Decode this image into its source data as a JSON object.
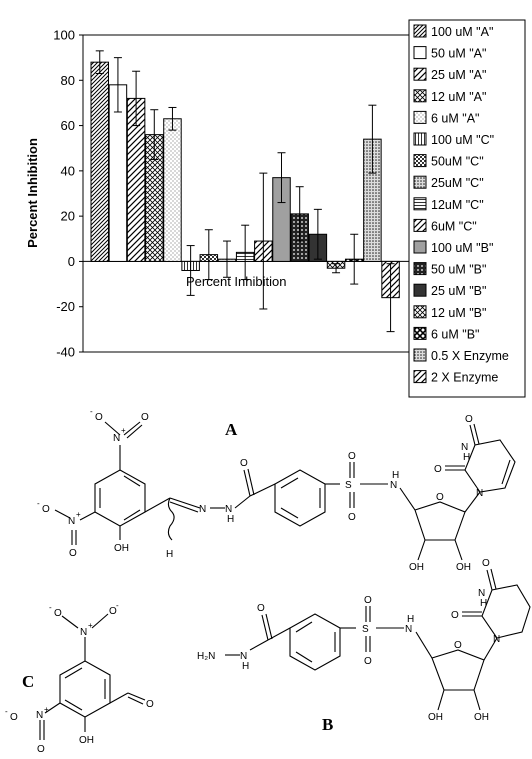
{
  "chart_data": {
    "type": "bar",
    "title": "",
    "xlabel": "Percent Inhibition",
    "ylabel": "Percent Inhibition",
    "ylim": [
      -40,
      100
    ],
    "yticks": [
      -40,
      -20,
      0,
      20,
      40,
      60,
      80,
      100
    ],
    "grid": false,
    "legend_position": "right",
    "series": [
      {
        "name": "100 uM \"A\"",
        "value": 88,
        "error": 5,
        "pattern": "diag-dense"
      },
      {
        "name": "50 uM \"A\"",
        "value": 78,
        "error": 12,
        "pattern": "white"
      },
      {
        "name": "25 uM \"A\"",
        "value": 72,
        "error": 12,
        "pattern": "diag-wide"
      },
      {
        "name": "12 uM \"A\"",
        "value": 56,
        "error": 11,
        "pattern": "cross"
      },
      {
        "name": "6 uM \"A\"",
        "value": 63,
        "error": 5,
        "pattern": "dots-light"
      },
      {
        "name": "100 uM \"C\"",
        "value": -4,
        "error": 11,
        "pattern": "vlines"
      },
      {
        "name": "50uM \"C\"",
        "value": 3,
        "error": 11,
        "pattern": "checker"
      },
      {
        "name": "25uM \"C\"",
        "value": 1,
        "error": 8,
        "pattern": "dots-dense"
      },
      {
        "name": "12uM \"C\"",
        "value": 4,
        "error": 12,
        "pattern": "hlines"
      },
      {
        "name": "6uM \"C\"",
        "value": 9,
        "error": 30,
        "pattern": "diag-wide"
      },
      {
        "name": "100 uM \"B\"",
        "value": 37,
        "error": 11,
        "pattern": "gray"
      },
      {
        "name": "50 uM \"B\"",
        "value": 21,
        "error": 12,
        "pattern": "dark-dots"
      },
      {
        "name": "25 uM \"B\"",
        "value": 12,
        "error": 11,
        "pattern": "dark"
      },
      {
        "name": "12 uM \"B\"",
        "value": -3,
        "error": 2,
        "pattern": "cross"
      },
      {
        "name": "6 uM \"B\"",
        "value": 1,
        "error": 11,
        "pattern": "xcross"
      },
      {
        "name": "0.5 X Enzyme",
        "value": 54,
        "error": 15,
        "pattern": "dots-dense"
      },
      {
        "name": "2 X Enzyme",
        "value": -16,
        "error": 15,
        "pattern": "diag-wide"
      }
    ]
  },
  "colors": {
    "gray_bar": "#a0a0a0",
    "dark_bar": "#333333",
    "frame": "#000000"
  },
  "structures": {
    "label_a": "A",
    "label_b": "B",
    "label_c": "C",
    "atoms": {
      "nitro_plus": "+",
      "N": "N",
      "O": "O",
      "O_minus": "-",
      "OH": "OH",
      "H": "H",
      "S": "S",
      "NH2": "H₂N"
    }
  }
}
